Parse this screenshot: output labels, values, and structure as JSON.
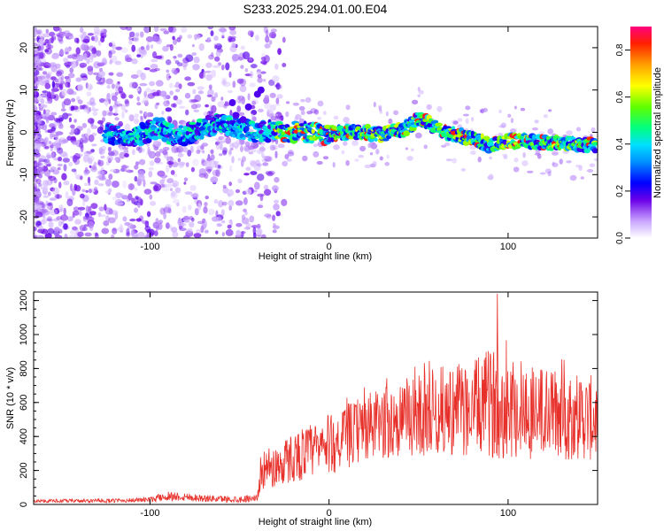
{
  "title": "S233.2025.294.01.00.E04",
  "chart_data": [
    {
      "type": "heatmap",
      "name": "spectrogram",
      "xlabel": "Height of straight line (km)",
      "ylabel": "Frequency (Hz)",
      "xlim": [
        -165,
        150
      ],
      "ylim": [
        -25,
        25
      ],
      "xticks": [
        -100,
        0,
        100
      ],
      "yticks": [
        -20,
        -10,
        0,
        10,
        20
      ],
      "ridge": {
        "description": "frequency of peak spectral amplitude vs height",
        "x": [
          -130,
          -110,
          -95,
          -85,
          -75,
          -68,
          -60,
          -50,
          -40,
          -30,
          -20,
          -10,
          0,
          10,
          20,
          30,
          40,
          45,
          50,
          55,
          60,
          65,
          70,
          80,
          90,
          100,
          110,
          120,
          130,
          140,
          148
        ],
        "y": [
          0,
          -1,
          1,
          -1,
          0,
          1.5,
          2,
          1,
          0,
          0.5,
          0,
          0,
          -0.5,
          0,
          0,
          -0.5,
          0.5,
          1.5,
          3,
          2.5,
          1,
          0,
          -0.5,
          -1.5,
          -3,
          -2,
          -2,
          -2.5,
          -2.5,
          -3,
          -3
        ]
      },
      "colorbar": {
        "label": "Normalized spectral amplitude",
        "range": [
          0,
          0.9
        ],
        "ticks": [
          "0.0",
          "0.2",
          "0.4",
          "0.6",
          "0.8"
        ]
      }
    },
    {
      "type": "line",
      "name": "snr",
      "xlabel": "Height of straight line (km)",
      "ylabel": "SNR (10 * v/v)",
      "xlim": [
        -165,
        150
      ],
      "ylim": [
        0,
        1250
      ],
      "xticks": [
        -100,
        0,
        100
      ],
      "yticks": [
        0,
        200,
        400,
        600,
        800,
        1000,
        1200
      ],
      "color": "#e8302a",
      "envelope": {
        "description": "approximate mean and spread of the noisy SNR trace",
        "x": [
          -165,
          -120,
          -100,
          -90,
          -80,
          -70,
          -50,
          -40,
          -38,
          -30,
          -20,
          0,
          20,
          40,
          60,
          80,
          90,
          100,
          110,
          120,
          140,
          150
        ],
        "mean": [
          20,
          22,
          28,
          50,
          45,
          35,
          30,
          40,
          200,
          220,
          280,
          350,
          450,
          500,
          550,
          560,
          600,
          580,
          560,
          540,
          520,
          500
        ],
        "spread": [
          10,
          12,
          15,
          30,
          25,
          20,
          20,
          20,
          110,
          130,
          150,
          180,
          200,
          230,
          260,
          280,
          320,
          320,
          300,
          280,
          260,
          250
        ],
        "peak": 1240
      }
    }
  ]
}
